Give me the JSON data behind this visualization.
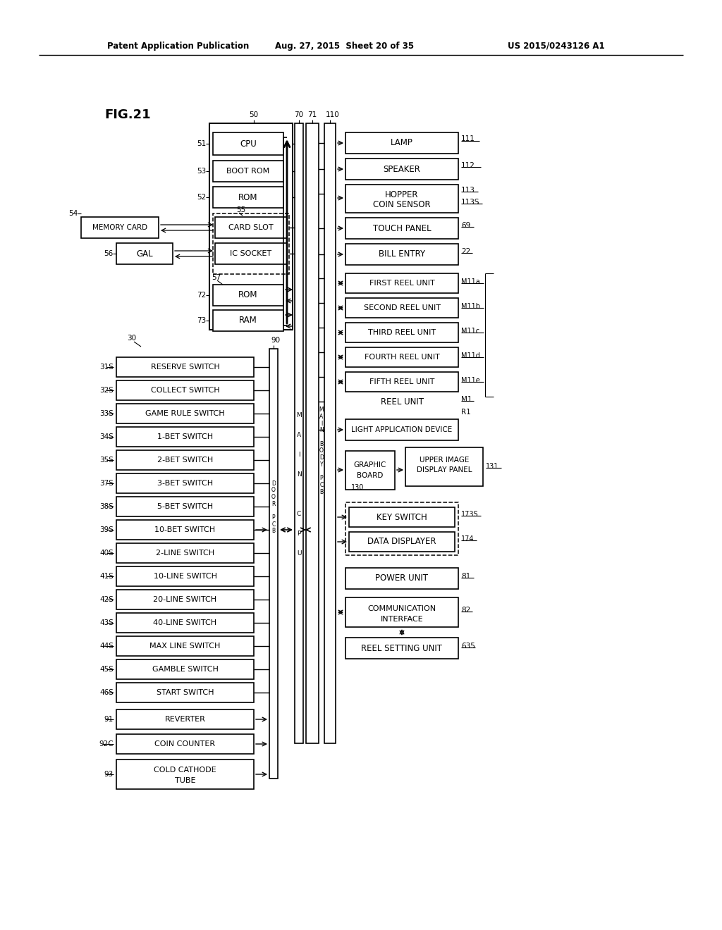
{
  "title_left": "Patent Application Publication",
  "title_mid": "Aug. 27, 2015  Sheet 20 of 35",
  "title_right": "US 2015/0243126 A1",
  "fig_label": "FIG.21",
  "background": "#ffffff"
}
